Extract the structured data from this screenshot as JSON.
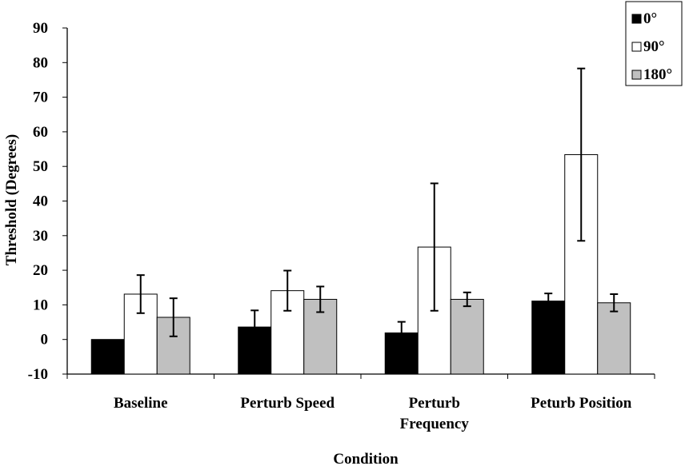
{
  "chart_data": {
    "type": "bar",
    "title": "",
    "xlabel": "Condition",
    "ylabel": "Threshold (Degrees)",
    "ylim": [
      -10,
      90
    ],
    "yticks": [
      "-10",
      "0",
      "10",
      "20",
      "30",
      "40",
      "50",
      "60",
      "70",
      "80",
      "90"
    ],
    "grid": false,
    "legend_position": "top-right",
    "categories": [
      [
        "Baseline"
      ],
      [
        "Perturb Speed"
      ],
      [
        "Perturb",
        "Frequency"
      ],
      [
        "Peturb Position"
      ]
    ],
    "series": [
      {
        "name": "0°",
        "color": "#000000",
        "values": [
          0,
          3.6,
          1.9,
          11.1
        ],
        "errors": [
          0,
          4.8,
          3.2,
          2.2
        ]
      },
      {
        "name": "90°",
        "color": "#ffffff",
        "values": [
          13.1,
          14.1,
          26.7,
          53.4
        ],
        "errors": [
          5.5,
          5.8,
          18.4,
          24.9
        ]
      },
      {
        "name": "180°",
        "color": "#c0c0c0",
        "values": [
          6.4,
          11.6,
          11.6,
          10.6
        ],
        "errors": [
          5.5,
          3.7,
          2.0,
          2.5
        ]
      }
    ]
  }
}
